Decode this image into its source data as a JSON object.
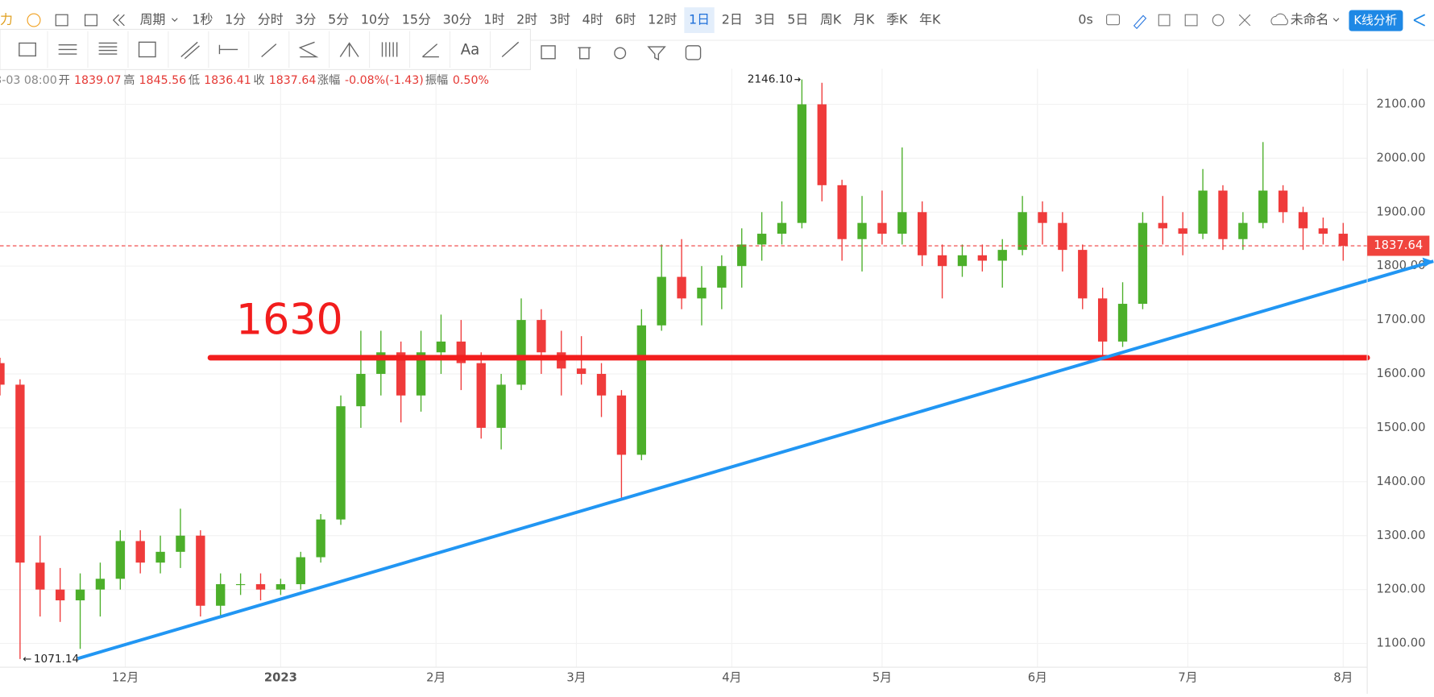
{
  "toolbar": {
    "corner": "力",
    "period": "周期",
    "intervals": [
      "1秒",
      "1分",
      "分时",
      "3分",
      "5分",
      "10分",
      "15分",
      "30分",
      "1时",
      "2时",
      "3时",
      "4时",
      "6时",
      "12时",
      "1日",
      "2日",
      "3日",
      "5日",
      "周K",
      "月K",
      "季K",
      "年K"
    ],
    "active_index": 14,
    "timer": "0s",
    "workspace": "未命名",
    "analysis_button": "K线分析",
    "text_tool": "Aa"
  },
  "info": {
    "date": "3-03 08:00",
    "open_label": "开",
    "open": "1839.07",
    "high_label": "高",
    "high": "1845.56",
    "low_label": "低",
    "low": "1836.41",
    "close_label": "收",
    "close": "1837.64",
    "change_label": "涨幅",
    "change": "-0.08%(-1.43)",
    "amplitude_label": "振幅",
    "amplitude": "0.50%"
  },
  "chart_data": {
    "type": "candlestick",
    "up_color": "#4caf2a",
    "down_color": "#ef3b3b",
    "grid": true,
    "x": [
      0,
      4,
      8,
      12,
      16,
      20,
      24,
      28,
      32,
      36,
      40,
      44,
      48,
      52,
      56,
      60,
      64,
      68,
      72,
      76,
      80,
      84,
      88,
      92,
      96,
      100,
      104,
      108,
      112,
      116,
      120,
      124,
      128,
      132,
      136,
      140,
      144,
      148,
      152,
      156,
      160,
      164,
      168,
      172,
      176,
      180,
      184,
      188,
      192,
      196,
      200,
      204,
      208,
      212,
      216,
      220,
      224,
      228,
      232,
      236,
      240,
      244,
      248,
      252,
      256,
      260,
      264,
      268
    ],
    "open": [
      1620,
      1580,
      1250,
      1200,
      1180,
      1200,
      1220,
      1290,
      1250,
      1270,
      1300,
      1170,
      1210,
      1210,
      1200,
      1210,
      1260,
      1330,
      1540,
      1600,
      1640,
      1560,
      1640,
      1660,
      1620,
      1500,
      1580,
      1700,
      1640,
      1610,
      1600,
      1560,
      1450,
      1690,
      1780,
      1740,
      1760,
      1800,
      1840,
      1860,
      1880,
      2100,
      1950,
      1850,
      1880,
      1860,
      1900,
      1820,
      1800,
      1820,
      1810,
      1830,
      1900,
      1880,
      1830,
      1740,
      1660,
      1730,
      1880,
      1870,
      1860,
      1940,
      1850,
      1880,
      1940,
      1900,
      1870,
      1860
    ],
    "high": [
      1630,
      1590,
      1300,
      1240,
      1230,
      1250,
      1310,
      1310,
      1300,
      1350,
      1310,
      1230,
      1230,
      1230,
      1220,
      1270,
      1340,
      1560,
      1680,
      1680,
      1660,
      1680,
      1710,
      1700,
      1640,
      1600,
      1740,
      1720,
      1680,
      1670,
      1620,
      1570,
      1720,
      1840,
      1850,
      1800,
      1820,
      1870,
      1900,
      1920,
      2146.1,
      2140,
      1960,
      1930,
      1940,
      2020,
      1920,
      1840,
      1840,
      1840,
      1850,
      1930,
      1920,
      1900,
      1840,
      1760,
      1770,
      1900,
      1930,
      1900,
      1980,
      1950,
      1900,
      2030,
      1950,
      1910,
      1890,
      1880
    ],
    "low": [
      1560,
      1071.14,
      1150,
      1140,
      1090,
      1150,
      1200,
      1230,
      1230,
      1240,
      1150,
      1150,
      1190,
      1180,
      1190,
      1200,
      1250,
      1320,
      1500,
      1560,
      1510,
      1530,
      1600,
      1570,
      1480,
      1460,
      1570,
      1600,
      1560,
      1580,
      1520,
      1370,
      1440,
      1680,
      1720,
      1690,
      1720,
      1760,
      1810,
      1840,
      1870,
      1920,
      1810,
      1790,
      1840,
      1840,
      1800,
      1740,
      1780,
      1790,
      1760,
      1820,
      1840,
      1790,
      1720,
      1630,
      1650,
      1720,
      1840,
      1820,
      1850,
      1830,
      1830,
      1870,
      1880,
      1830,
      1840,
      1810
    ],
    "close": [
      1580,
      1250,
      1200,
      1180,
      1200,
      1220,
      1290,
      1250,
      1270,
      1300,
      1170,
      1210,
      1210,
      1200,
      1210,
      1260,
      1330,
      1540,
      1600,
      1640,
      1560,
      1640,
      1660,
      1620,
      1500,
      1580,
      1700,
      1640,
      1610,
      1600,
      1560,
      1450,
      1690,
      1780,
      1740,
      1760,
      1800,
      1840,
      1860,
      1880,
      2100,
      1950,
      1850,
      1880,
      1860,
      1900,
      1820,
      1800,
      1820,
      1810,
      1830,
      1900,
      1880,
      1830,
      1740,
      1660,
      1730,
      1880,
      1870,
      1860,
      1940,
      1850,
      1880,
      1940,
      1900,
      1870,
      1860,
      1837.64
    ],
    "xlim": [
      0,
      272.8
    ],
    "ylim": [
      1056,
      2166
    ],
    "xticks": [
      {
        "value": 25,
        "label": "12月"
      },
      {
        "value": 56,
        "label": "2023"
      },
      {
        "value": 87,
        "label": "2月"
      },
      {
        "value": 115,
        "label": "3月"
      },
      {
        "value": 146,
        "label": "4月"
      },
      {
        "value": 176,
        "label": "5月"
      },
      {
        "value": 207,
        "label": "6月"
      },
      {
        "value": 237,
        "label": "7月"
      },
      {
        "value": 268,
        "label": "8月"
      }
    ],
    "yticks": [
      {
        "value": 1100,
        "label": "1100.00"
      },
      {
        "value": 1200,
        "label": "1200.00"
      },
      {
        "value": 1300,
        "label": "1300.00"
      },
      {
        "value": 1400,
        "label": "1400.00"
      },
      {
        "value": 1500,
        "label": "1500.00"
      },
      {
        "value": 1600,
        "label": "1600.00"
      },
      {
        "value": 1700,
        "label": "1700.00"
      },
      {
        "value": 1800,
        "label": "1800.00"
      },
      {
        "value": 1900,
        "label": "1900.00"
      },
      {
        "value": 2000,
        "label": "2000.00"
      },
      {
        "value": 2100,
        "label": "2100.00"
      }
    ],
    "hline": 1630,
    "hline_color": "#f21d1d",
    "trendline": {
      "x": [
        15.5,
        286
      ],
      "y": [
        1072,
        1809
      ],
      "color": "#2196f3"
    },
    "last_price_label": "1837.64",
    "max_label": "2146.10",
    "min_label": "1071.14"
  }
}
